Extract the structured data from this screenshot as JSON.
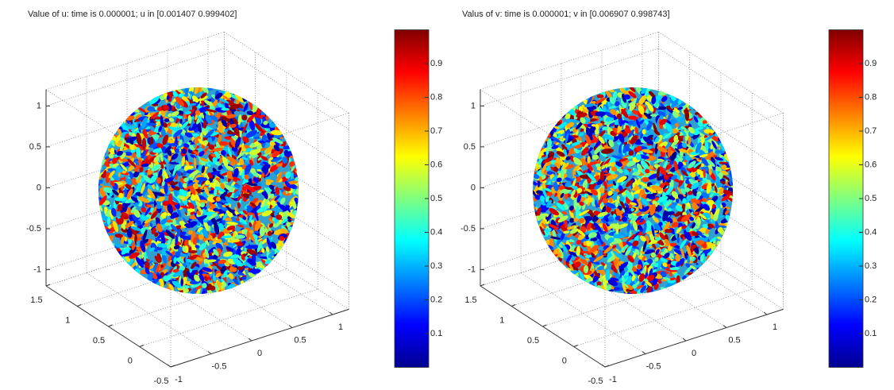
{
  "chart_data": [
    {
      "type": "surface3d",
      "title": "Value of u: time is 0.000001;    u in [0.001407  0.999402]",
      "xlim": [
        -1,
        1.2
      ],
      "ylim": [
        -0.5,
        1.5
      ],
      "zlim": [
        -1.2,
        1.2
      ],
      "xticks": [
        -1,
        -0.5,
        0,
        0.5,
        1
      ],
      "yticks": [
        -0.5,
        0,
        0.5,
        1,
        1.5
      ],
      "zticks": [
        -1,
        -0.5,
        0,
        0.5,
        1
      ],
      "clim": [
        0,
        1
      ],
      "cticks": [
        0.1,
        0.2,
        0.3,
        0.4,
        0.5,
        0.6,
        0.7,
        0.8,
        0.9
      ],
      "colormap": "jet",
      "grid": true
    },
    {
      "type": "surface3d",
      "title": "Valus of v: time is 0.000001;    v in [0.006907  0.998743]",
      "xlim": [
        -1,
        1.2
      ],
      "ylim": [
        -0.5,
        1.5
      ],
      "zlim": [
        -1.2,
        1.2
      ],
      "xticks": [
        -1,
        -0.5,
        0,
        0.5,
        1
      ],
      "yticks": [
        -0.5,
        0,
        0.5,
        1,
        1.5
      ],
      "zticks": [
        -1,
        -0.5,
        0,
        0.5,
        1
      ],
      "clim": [
        0,
        1
      ],
      "cticks": [
        0.1,
        0.2,
        0.3,
        0.4,
        0.5,
        0.6,
        0.7,
        0.8,
        0.9
      ],
      "colormap": "jet",
      "grid": true
    }
  ]
}
